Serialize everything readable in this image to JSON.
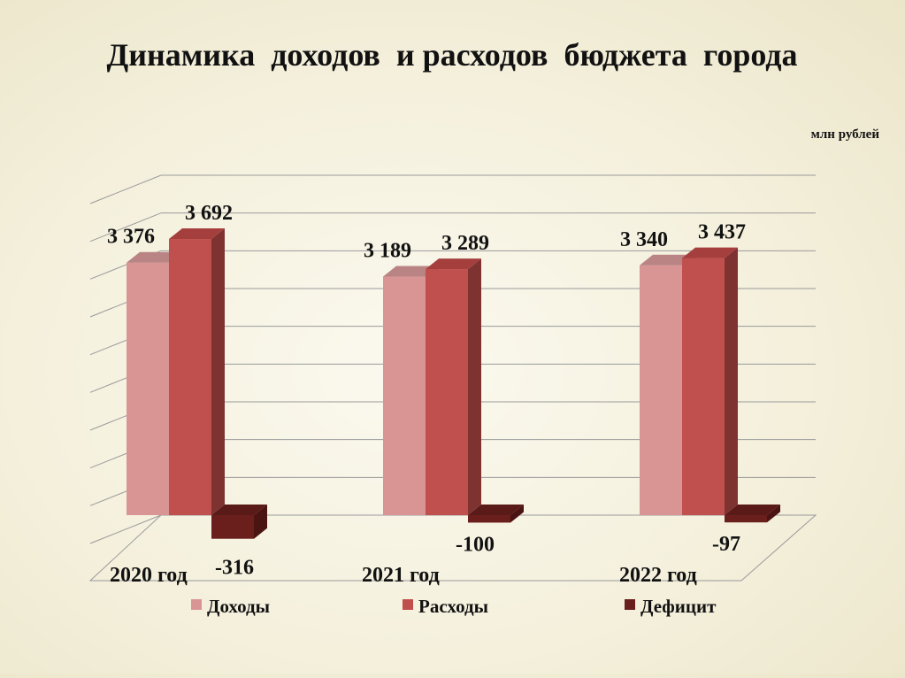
{
  "chart_data": {
    "type": "bar",
    "title": "Динамика  доходов  и расходов  бюджета  города",
    "unit": "млн рублей",
    "categories": [
      "2020 год",
      "2021 год",
      "2022 год"
    ],
    "series": [
      {
        "name": "Доходы",
        "values": [
          3376,
          3189,
          3340
        ],
        "labels": [
          "3 376",
          "3 189",
          "3 340"
        ],
        "color": "#d99594",
        "side_color": "#a86c6b",
        "top_color": "#b98483"
      },
      {
        "name": "Расходы",
        "values": [
          3692,
          3289,
          3437
        ],
        "labels": [
          "3 692",
          "3 289",
          "3 437"
        ],
        "color": "#c0504d",
        "side_color": "#7f3331",
        "top_color": "#a53f3d"
      },
      {
        "name": "Дефицит",
        "values": [
          -316,
          -100,
          -97
        ],
        "labels": [
          "-316",
          "-100",
          "-97"
        ],
        "color": "#6b1f1c",
        "side_color": "#4a1412",
        "top_color": "#5a1a17"
      }
    ],
    "ylim": [
      -400,
      4000
    ],
    "grid": true,
    "legend_position": "bottom",
    "three_d": true
  }
}
